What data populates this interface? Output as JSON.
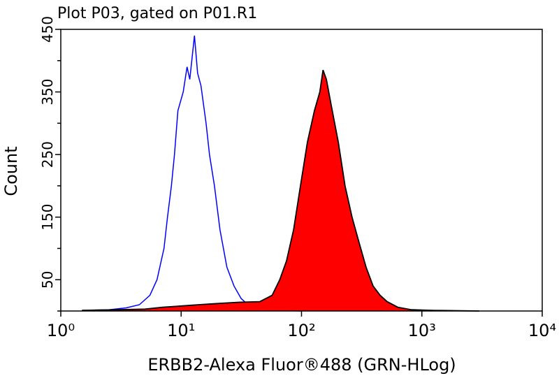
{
  "chart_data": {
    "type": "histogram-overlay",
    "title": "Plot P03, gated on P01.R1",
    "x_label": "ERBB2-Alexa Fluor®488 (GRN-HLog)",
    "y_label": "Count",
    "x_log": true,
    "xlim": [
      1,
      10000
    ],
    "xticks": [
      {
        "value": 1,
        "label": "10⁰"
      },
      {
        "value": 10,
        "label": "10¹"
      },
      {
        "value": 100,
        "label": "10²"
      },
      {
        "value": 1000,
        "label": "10³"
      },
      {
        "value": 10000,
        "label": "10⁴"
      }
    ],
    "ylim": [
      0,
      450
    ],
    "yticks": [
      50,
      150,
      250,
      350,
      450
    ],
    "minor_yticks": [
      0,
      100,
      200,
      300,
      400
    ],
    "series": [
      {
        "color": "#0000ff",
        "filled": false,
        "x": [
          1.5,
          2.5,
          3.5,
          4.5,
          5.5,
          6.3,
          7.2,
          7.7,
          8.3,
          8.8,
          9.4,
          10.4,
          11.2,
          11.8,
          12.9,
          13.7,
          14.6,
          16.1,
          17.2,
          18.9,
          21,
          24,
          27.5,
          31.5,
          35.9,
          44,
          60,
          100
        ],
        "values": [
          1,
          2,
          5,
          10,
          25,
          50,
          100,
          150,
          200,
          250,
          320,
          350,
          390,
          370,
          440,
          380,
          360,
          300,
          250,
          200,
          130,
          70,
          40,
          20,
          10,
          3,
          1,
          0
        ]
      },
      {
        "color": "#ff0000",
        "filled": true,
        "x": [
          1.5,
          3,
          5,
          7,
          10,
          14,
          20,
          30,
          45,
          57,
          66,
          75,
          86,
          98,
          112,
          128,
          142,
          151,
          161,
          176,
          202,
          230,
          263,
          300,
          344,
          393,
          450,
          514,
          630,
          820,
          1250,
          3000
        ],
        "values": [
          1,
          2,
          3,
          6,
          8,
          10,
          12,
          14,
          15,
          25,
          50,
          80,
          130,
          200,
          270,
          320,
          350,
          385,
          370,
          330,
          270,
          200,
          150,
          110,
          70,
          40,
          25,
          15,
          6,
          2,
          1,
          0
        ]
      }
    ]
  }
}
